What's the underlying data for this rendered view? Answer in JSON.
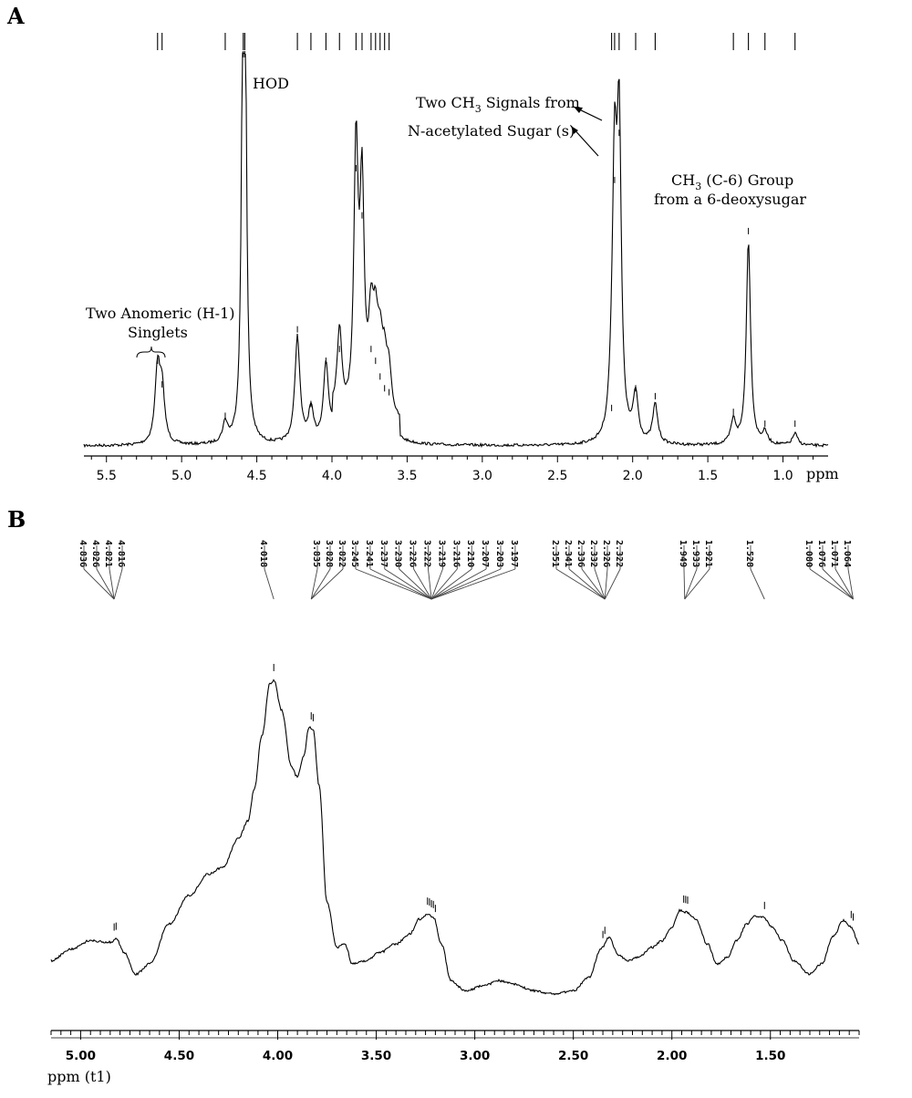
{
  "panels": [
    {
      "id": "A",
      "letter": "A"
    },
    {
      "id": "B",
      "letter": "B"
    }
  ],
  "chart_data": [
    {
      "type": "line",
      "panel": "A",
      "xlabel": "ppm",
      "x_reversed": true,
      "xlim": [
        5.65,
        0.7
      ],
      "x_ticks": [
        "5.5",
        "5.0",
        "4.5",
        "4.0",
        "3.5",
        "3.0",
        "2.5",
        "2.0",
        "1.5",
        "1.0"
      ],
      "peaks": [
        {
          "ppm": 5.16,
          "height": 0.19
        },
        {
          "ppm": 5.13,
          "height": 0.13
        },
        {
          "ppm": 4.71,
          "height": 0.05
        },
        {
          "ppm": 4.59,
          "height": 1.0
        },
        {
          "ppm": 4.58,
          "height": 1.0
        },
        {
          "ppm": 4.23,
          "height": 0.27
        },
        {
          "ppm": 4.14,
          "height": 0.08
        },
        {
          "ppm": 4.04,
          "height": 0.19
        },
        {
          "ppm": 3.95,
          "height": 0.22
        },
        {
          "ppm": 3.84,
          "height": 0.68
        },
        {
          "ppm": 3.8,
          "height": 0.56
        },
        {
          "ppm": 3.74,
          "height": 0.22
        },
        {
          "ppm": 3.71,
          "height": 0.19
        },
        {
          "ppm": 3.68,
          "height": 0.15
        },
        {
          "ppm": 3.65,
          "height": 0.12
        },
        {
          "ppm": 3.62,
          "height": 0.11
        },
        {
          "ppm": 2.14,
          "height": 0.07
        },
        {
          "ppm": 2.12,
          "height": 0.65
        },
        {
          "ppm": 2.09,
          "height": 0.77
        },
        {
          "ppm": 1.98,
          "height": 0.12
        },
        {
          "ppm": 1.85,
          "height": 0.1
        },
        {
          "ppm": 1.33,
          "height": 0.06
        },
        {
          "ppm": 1.23,
          "height": 0.52
        },
        {
          "ppm": 1.12,
          "height": 0.03
        },
        {
          "ppm": 0.92,
          "height": 0.03
        }
      ],
      "peak_ticks_ppm": [
        5.16,
        5.13,
        4.71,
        4.59,
        4.58,
        4.23,
        4.14,
        4.04,
        3.95,
        3.84,
        3.8,
        3.74,
        3.71,
        3.68,
        3.65,
        3.62,
        2.14,
        2.12,
        2.09,
        1.98,
        1.85,
        1.33,
        1.23,
        1.12,
        0.92
      ],
      "annotations": {
        "hod": "HOD",
        "anomeric_line1": "Two Anomeric (H-1)",
        "anomeric_line2": "Singlets",
        "ch3_sig_prefix": "Two CH",
        "ch3_sig_sub": "3",
        "ch3_sig_suffix": " Signals from",
        "nacetyl": "N-acetylated Sugar (s)",
        "deoxy_prefix": "CH",
        "deoxy_sub": "3",
        "deoxy_suffix": " (C-6) Group",
        "deoxy_line2": "from a 6-deoxysugar"
      }
    },
    {
      "type": "line",
      "panel": "B",
      "xlabel": "ppm (t1)",
      "x_reversed": true,
      "xlim": [
        5.15,
        1.05
      ],
      "x_ticks": [
        "5.00",
        "4.50",
        "4.00",
        "3.50",
        "3.00",
        "2.50",
        "2.00",
        "1.50"
      ],
      "profile": {
        "ppm": [
          5.15,
          5.05,
          4.95,
          4.85,
          4.82,
          4.78,
          4.72,
          4.65,
          4.55,
          4.45,
          4.35,
          4.28,
          4.2,
          4.15,
          4.12,
          4.08,
          4.04,
          4.02,
          3.98,
          3.93,
          3.9,
          3.87,
          3.84,
          3.82,
          3.79,
          3.75,
          3.7,
          3.66,
          3.62,
          3.55,
          3.48,
          3.4,
          3.33,
          3.28,
          3.24,
          3.21,
          3.17,
          3.12,
          3.05,
          2.95,
          2.88,
          2.8,
          2.7,
          2.6,
          2.5,
          2.42,
          2.36,
          2.32,
          2.27,
          2.22,
          2.17,
          2.1,
          2.05,
          2.0,
          1.96,
          1.93,
          1.88,
          1.82,
          1.77,
          1.72,
          1.67,
          1.62,
          1.58,
          1.54,
          1.49,
          1.44,
          1.38,
          1.3,
          1.24,
          1.18,
          1.13,
          1.09,
          1.05
        ],
        "intensity": [
          0.2,
          0.27,
          0.32,
          0.31,
          0.33,
          0.25,
          0.12,
          0.18,
          0.42,
          0.59,
          0.72,
          0.76,
          0.93,
          1.04,
          1.22,
          1.55,
          1.86,
          1.88,
          1.7,
          1.36,
          1.3,
          1.42,
          1.6,
          1.58,
          1.25,
          0.55,
          0.28,
          0.3,
          0.18,
          0.2,
          0.25,
          0.3,
          0.36,
          0.45,
          0.48,
          0.46,
          0.3,
          0.08,
          0.02,
          0.05,
          0.08,
          0.06,
          0.02,
          0.0,
          0.02,
          0.1,
          0.27,
          0.34,
          0.23,
          0.2,
          0.22,
          0.28,
          0.32,
          0.4,
          0.5,
          0.49,
          0.45,
          0.3,
          0.18,
          0.22,
          0.32,
          0.42,
          0.47,
          0.46,
          0.4,
          0.32,
          0.2,
          0.12,
          0.18,
          0.35,
          0.44,
          0.4,
          0.3
        ]
      },
      "peak_ticks_ppm": [
        4.83,
        4.82,
        4.02,
        3.83,
        3.82,
        3.24,
        3.23,
        3.22,
        3.21,
        3.2,
        2.35,
        2.34,
        1.94,
        1.93,
        1.92,
        1.53,
        1.09,
        1.08
      ],
      "peak_label_groups": [
        {
          "labels": [
            "4.836",
            "4.826",
            "4.821",
            "4.816"
          ]
        },
        {
          "labels": [
            "4.018"
          ]
        },
        {
          "labels": [
            "3.835",
            "3.828",
            "3.822"
          ]
        },
        {
          "labels": [
            "3.245",
            "3.241",
            "3.237",
            "3.230",
            "3.226",
            "3.222",
            "3.219",
            "3.216",
            "3.210",
            "3.207",
            "3.203",
            "3.197"
          ]
        },
        {
          "labels": [
            "2.351",
            "2.341",
            "2.336",
            "2.332",
            "2.326",
            "2.322"
          ]
        },
        {
          "labels": [
            "1.949",
            "1.933",
            "1.921"
          ]
        },
        {
          "labels": [
            "1.528"
          ]
        },
        {
          "labels": [
            "1.080",
            "1.076",
            "1.071",
            "1.064"
          ]
        }
      ]
    }
  ]
}
